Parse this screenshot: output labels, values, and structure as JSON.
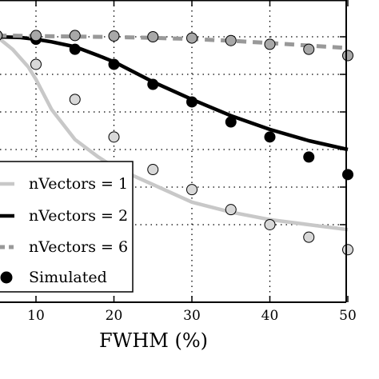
{
  "chart_data": {
    "type": "line",
    "title": "",
    "xlabel": "FWHM  (%)",
    "ylabel": "",
    "xlim": [
      5,
      50
    ],
    "ylim": [
      0.1,
      1.05
    ],
    "grid": true,
    "x_ticks": [
      10,
      20,
      30,
      40,
      50
    ],
    "y_gridlines": [
      0.2,
      0.35,
      0.5,
      0.65,
      0.8,
      0.95
    ],
    "legend_position": "bottom-left",
    "series": [
      {
        "name": "nVectors = 1",
        "style": "solid",
        "color": "#c8c8c8",
        "x": [
          5,
          7,
          9,
          10,
          12,
          15,
          18,
          20,
          25,
          30,
          35,
          40,
          45,
          50
        ],
        "y": [
          0.95,
          0.9,
          0.83,
          0.78,
          0.66,
          0.54,
          0.47,
          0.43,
          0.36,
          0.29,
          0.25,
          0.22,
          0.2,
          0.18
        ]
      },
      {
        "name": "nVectors = 2",
        "style": "solid",
        "color": "#000000",
        "x": [
          5,
          8,
          10,
          12,
          15,
          18,
          20,
          25,
          30,
          35,
          40,
          45,
          50
        ],
        "y": [
          0.95,
          0.947,
          0.94,
          0.93,
          0.91,
          0.875,
          0.85,
          0.77,
          0.7,
          0.635,
          0.58,
          0.535,
          0.5
        ]
      },
      {
        "name": "nVectors = 6",
        "style": "dashed",
        "color": "#999999",
        "x": [
          5,
          10,
          15,
          20,
          25,
          30,
          35,
          40,
          45,
          50
        ],
        "y": [
          0.955,
          0.953,
          0.951,
          0.949,
          0.946,
          0.941,
          0.934,
          0.925,
          0.915,
          0.905
        ]
      },
      {
        "name": "Simulated",
        "style": "markers",
        "marker": "black",
        "x": [
          10,
          15,
          20,
          25,
          30,
          35,
          40,
          45,
          50
        ],
        "y": [
          0.94,
          0.9,
          0.84,
          0.76,
          0.69,
          0.61,
          0.55,
          0.47,
          0.4
        ]
      },
      {
        "name": "",
        "style": "markers",
        "marker": "light-gray",
        "x": [
          5,
          10,
          15,
          20,
          25,
          30,
          35,
          40,
          45,
          50
        ],
        "y": [
          0.955,
          0.84,
          0.7,
          0.55,
          0.42,
          0.34,
          0.26,
          0.2,
          0.15,
          0.1
        ]
      },
      {
        "name": "",
        "style": "markers",
        "marker": "mid-gray",
        "x": [
          5,
          10,
          15,
          20,
          25,
          30,
          35,
          40,
          45,
          50
        ],
        "y": [
          0.955,
          0.955,
          0.955,
          0.953,
          0.95,
          0.945,
          0.935,
          0.92,
          0.9,
          0.875
        ]
      }
    ],
    "legend": [
      {
        "label": "nVectors = 1",
        "swatch": "line-light"
      },
      {
        "label": "nVectors = 2",
        "swatch": "line-black"
      },
      {
        "label": "nVectors = 6",
        "swatch": "line-dashed"
      },
      {
        "label": "Simulated",
        "swatch": "marker-black"
      }
    ]
  }
}
